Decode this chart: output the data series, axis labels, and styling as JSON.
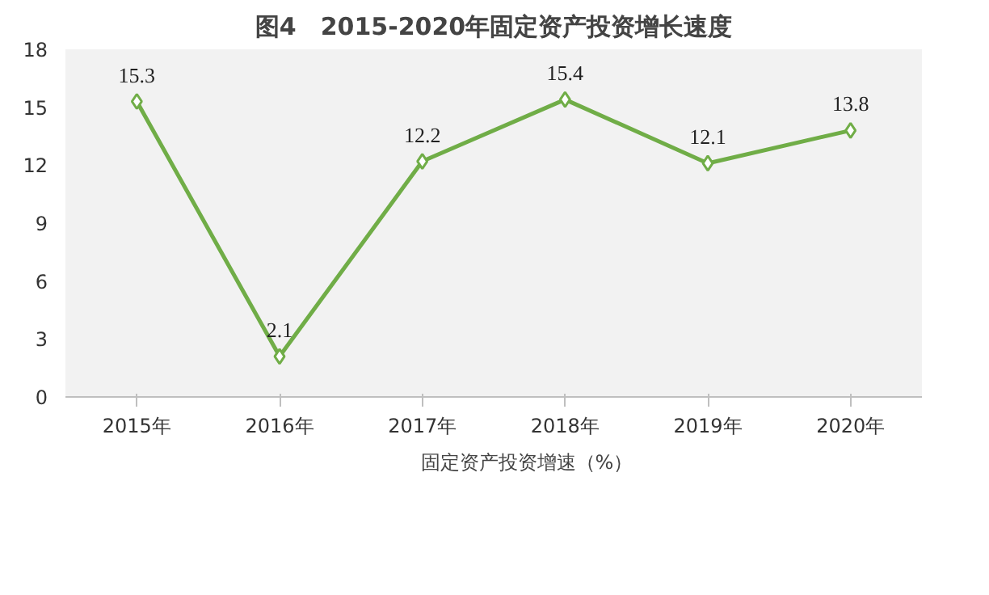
{
  "chart_data": {
    "type": "line",
    "title": "图4　2015-2020年固定资产投资增长速度",
    "categories": [
      "2015年",
      "2016年",
      "2017年",
      "2018年",
      "2019年",
      "2020年"
    ],
    "series": [
      {
        "name": "固定资产投资增速（%）",
        "color": "#70ad47",
        "values": [
          15.3,
          2.1,
          12.2,
          15.4,
          12.1,
          13.8
        ]
      }
    ],
    "ylim": [
      0,
      18
    ],
    "yticks": [
      0,
      3,
      6,
      9,
      12,
      15,
      18
    ],
    "data_labels": true,
    "legend": "bottom",
    "marker": "diamond",
    "grid": false
  }
}
